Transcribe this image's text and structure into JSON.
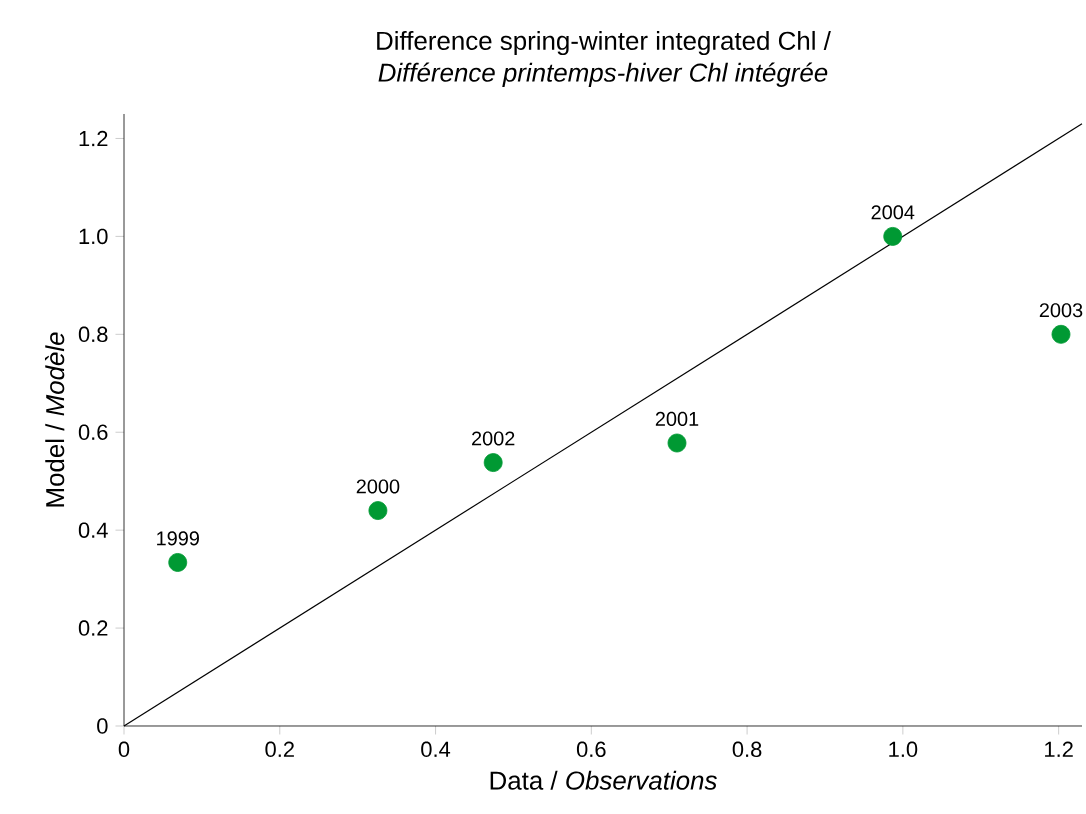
{
  "chart_data": {
    "type": "scatter",
    "title": "Difference spring-winter integrated Chl /",
    "subtitle": "*Différence printemps-hiver Chl intégrée*",
    "xlabel": "Data / *Observations*",
    "ylabel": "Model / *Modèle*",
    "xlim": [
      0,
      1.23
    ],
    "ylim": [
      0,
      1.25
    ],
    "xticks": [
      0,
      0.2,
      0.4,
      0.6,
      0.8,
      {
        "value": 1,
        "label": "1.0"
      },
      1.2
    ],
    "yticks": [
      0,
      0.2,
      0.4,
      0.6,
      0.8,
      {
        "value": 1,
        "label": "1.0"
      },
      1.2
    ],
    "grid": false,
    "series": [
      {
        "type": "scatter",
        "color": "#009933",
        "x": [
          0.069,
          0.326,
          0.474,
          0.71,
          0.987,
          1.203
        ],
        "values": [
          0.334,
          0.44,
          0.538,
          0.578,
          1.0,
          0.8
        ]
      },
      {
        "type": "line",
        "color": "#000000",
        "x": [
          0,
          1.23
        ],
        "values": [
          0,
          1.23
        ]
      }
    ],
    "annotations": [
      {
        "text": "1999",
        "x": 0.069,
        "y": 0.334
      },
      {
        "text": "2000",
        "x": 0.326,
        "y": 0.44
      },
      {
        "text": "2002",
        "x": 0.474,
        "y": 0.538
      },
      {
        "text": "2001",
        "x": 0.71,
        "y": 0.578
      },
      {
        "text": "2004",
        "x": 0.987,
        "y": 1.0
      },
      {
        "text": "2003",
        "x": 1.203,
        "y": 0.8
      }
    ]
  }
}
